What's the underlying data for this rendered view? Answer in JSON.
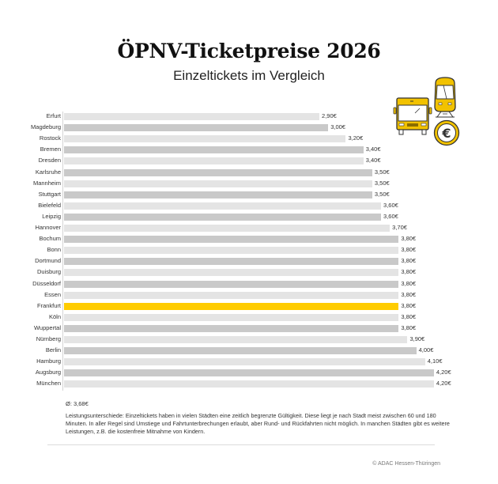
{
  "header": {
    "title": "ÖPNV-Ticketpreise 2026",
    "subtitle": "Einzeltickets im Vergleich"
  },
  "icons": [
    "bus-icon",
    "tram-icon",
    "euro-coin-icon"
  ],
  "colors": {
    "bar_light": "#e4e4e4",
    "bar_dark": "#c9c9c9",
    "highlight": "#ffcc00",
    "icon_yellow": "#f2c200",
    "icon_outline": "#333333"
  },
  "chart_data": {
    "type": "bar",
    "orientation": "horizontal",
    "title": "ÖPNV-Ticketpreise 2026",
    "subtitle": "Einzeltickets im Vergleich",
    "xlabel": "",
    "ylabel": "",
    "unit": "€",
    "xlim": [
      0,
      4.5
    ],
    "grid": false,
    "legend": null,
    "highlight": "Frankfurt",
    "categories": [
      "Erfurt",
      "Magdeburg",
      "Rostock",
      "Bremen",
      "Dresden",
      "Karlsruhe",
      "Mannheim",
      "Stuttgart",
      "Bielefeld",
      "Leipzig",
      "Hannover",
      "Bochum",
      "Bonn",
      "Dortmund",
      "Duisburg",
      "Düsseldorf",
      "Essen",
      "Frankfurt",
      "Köln",
      "Wuppertal",
      "Nürnberg",
      "Berlin",
      "Hamburg",
      "Augsburg",
      "München"
    ],
    "values": [
      2.9,
      3.0,
      3.2,
      3.4,
      3.4,
      3.5,
      3.5,
      3.5,
      3.6,
      3.6,
      3.7,
      3.8,
      3.8,
      3.8,
      3.8,
      3.8,
      3.8,
      3.8,
      3.8,
      3.8,
      3.9,
      4.0,
      4.1,
      4.2,
      4.2
    ],
    "value_labels": [
      "2,90€",
      "3,00€",
      "3,20€",
      "3,40€",
      "3,40€",
      "3,50€",
      "3,50€",
      "3,50€",
      "3,60€",
      "3,60€",
      "3,70€",
      "3,80€",
      "3,80€",
      "3,80€",
      "3,80€",
      "3,80€",
      "3,80€",
      "3,80€",
      "3,80€",
      "3,80€",
      "3,90€",
      "4,00€",
      "4,10€",
      "4,20€",
      "4,20€"
    ],
    "average": 3.68,
    "average_label": "Ø: 3,68€"
  },
  "footer": {
    "average": "Ø: 3,68€",
    "note": "Leistungsunterschiede: Einzeltickets haben in vielen Städten eine zeitlich begrenzte Gültigkeit. Diese liegt je nach Stadt meist zwischen 60 und 180 Minuten. In aller Regel sind Umstiege und Fahrtunterbrechungen erlaubt, aber Rund- und Rückfahrten nicht möglich. In manchen Städten gibt es weitere Leistungen, z.B. die kostenfreie Mitnahme von Kindern.",
    "credit": "© ADAC Hessen-Thüringen"
  }
}
